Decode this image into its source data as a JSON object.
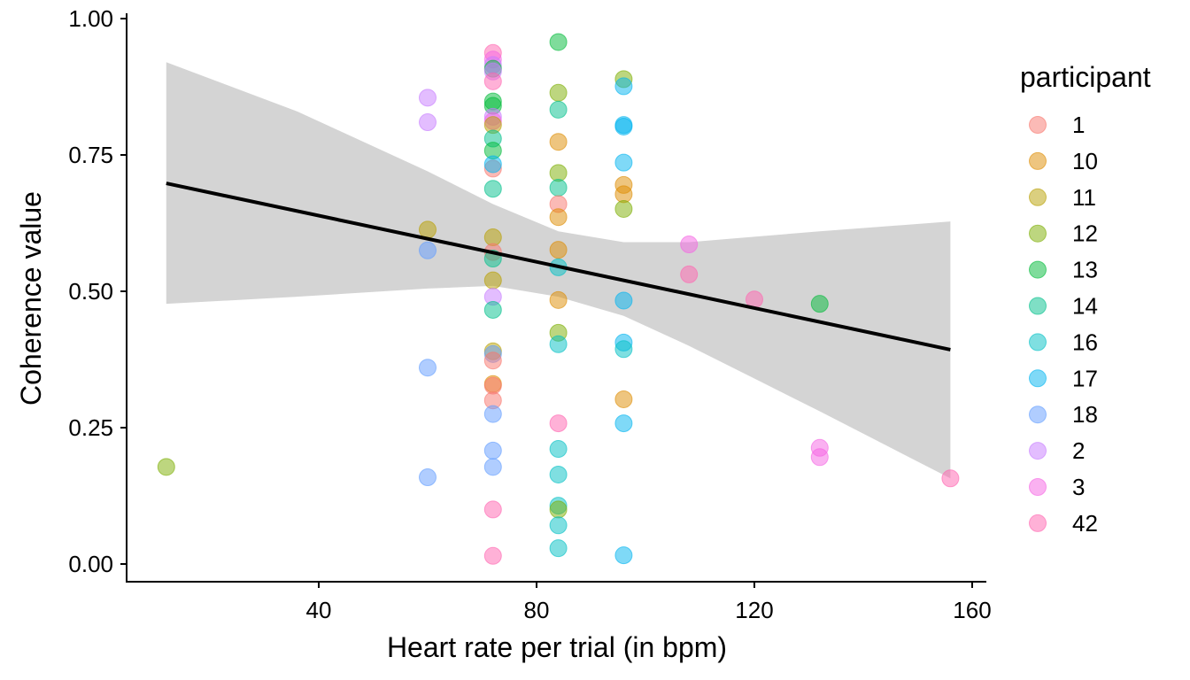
{
  "chart_data": {
    "type": "scatter",
    "title": "",
    "xlabel": "Heart rate per trial (in bpm)",
    "ylabel": "Coherence value",
    "xlim": [
      6,
      162
    ],
    "ylim": [
      -0.03,
      1.0
    ],
    "x_ticks": [
      40,
      80,
      120,
      160
    ],
    "x_tick_labels": [
      "40",
      "80",
      "120",
      "160"
    ],
    "y_ticks": [
      0,
      0.25,
      0.5,
      0.75,
      1.0
    ],
    "y_tick_labels": [
      "0.00",
      "0.25",
      "0.50",
      "0.75",
      "1.00"
    ],
    "grid": false,
    "legend": {
      "title": "participant",
      "position": "right",
      "entries": [
        {
          "label": "1",
          "color": "#F8766D"
        },
        {
          "label": "10",
          "color": "#DE8C00"
        },
        {
          "label": "11",
          "color": "#B79F00"
        },
        {
          "label": "12",
          "color": "#7CAE00"
        },
        {
          "label": "13",
          "color": "#00BA38"
        },
        {
          "label": "14",
          "color": "#00C08B"
        },
        {
          "label": "16",
          "color": "#00BFC4"
        },
        {
          "label": "17",
          "color": "#00B4F0"
        },
        {
          "label": "18",
          "color": "#619CFF"
        },
        {
          "label": "2",
          "color": "#C77CFF"
        },
        {
          "label": "3",
          "color": "#F564E3"
        },
        {
          "label": "42",
          "color": "#FF64B0"
        }
      ]
    },
    "points": [
      {
        "p": "12",
        "x": 12,
        "y": 0.178
      },
      {
        "p": "2",
        "x": 60,
        "y": 0.855
      },
      {
        "p": "2",
        "x": 60,
        "y": 0.81
      },
      {
        "p": "11",
        "x": 60,
        "y": 0.613
      },
      {
        "p": "18",
        "x": 60,
        "y": 0.575
      },
      {
        "p": "18",
        "x": 60,
        "y": 0.36
      },
      {
        "p": "18",
        "x": 60,
        "y": 0.159
      },
      {
        "p": "42",
        "x": 72,
        "y": 0.937
      },
      {
        "p": "3",
        "x": 72,
        "y": 0.925
      },
      {
        "p": "2",
        "x": 72,
        "y": 0.915
      },
      {
        "p": "13",
        "x": 72,
        "y": 0.908
      },
      {
        "p": "2",
        "x": 72,
        "y": 0.903
      },
      {
        "p": "42",
        "x": 72,
        "y": 0.885
      },
      {
        "p": "13",
        "x": 72,
        "y": 0.848
      },
      {
        "p": "13",
        "x": 72,
        "y": 0.84
      },
      {
        "p": "2",
        "x": 72,
        "y": 0.82
      },
      {
        "p": "3",
        "x": 72,
        "y": 0.812
      },
      {
        "p": "11",
        "x": 72,
        "y": 0.805
      },
      {
        "p": "14",
        "x": 72,
        "y": 0.78
      },
      {
        "p": "13",
        "x": 72,
        "y": 0.758
      },
      {
        "p": "1",
        "x": 72,
        "y": 0.725
      },
      {
        "p": "17",
        "x": 72,
        "y": 0.733
      },
      {
        "p": "14",
        "x": 72,
        "y": 0.688
      },
      {
        "p": "11",
        "x": 72,
        "y": 0.599
      },
      {
        "p": "1",
        "x": 72,
        "y": 0.572
      },
      {
        "p": "14",
        "x": 72,
        "y": 0.56
      },
      {
        "p": "11",
        "x": 72,
        "y": 0.52
      },
      {
        "p": "2",
        "x": 72,
        "y": 0.49
      },
      {
        "p": "14",
        "x": 72,
        "y": 0.466
      },
      {
        "p": "11",
        "x": 72,
        "y": 0.39
      },
      {
        "p": "18",
        "x": 72,
        "y": 0.385
      },
      {
        "p": "1",
        "x": 72,
        "y": 0.373
      },
      {
        "p": "10",
        "x": 72,
        "y": 0.33
      },
      {
        "p": "1",
        "x": 72,
        "y": 0.327
      },
      {
        "p": "1",
        "x": 72,
        "y": 0.3
      },
      {
        "p": "18",
        "x": 72,
        "y": 0.275
      },
      {
        "p": "18",
        "x": 72,
        "y": 0.208
      },
      {
        "p": "18",
        "x": 72,
        "y": 0.178
      },
      {
        "p": "42",
        "x": 72,
        "y": 0.1
      },
      {
        "p": "42",
        "x": 72,
        "y": 0.015
      },
      {
        "p": "13",
        "x": 84,
        "y": 0.957
      },
      {
        "p": "12",
        "x": 84,
        "y": 0.864
      },
      {
        "p": "14",
        "x": 84,
        "y": 0.833
      },
      {
        "p": "10",
        "x": 84,
        "y": 0.774
      },
      {
        "p": "12",
        "x": 84,
        "y": 0.717
      },
      {
        "p": "14",
        "x": 84,
        "y": 0.69
      },
      {
        "p": "1",
        "x": 84,
        "y": 0.66
      },
      {
        "p": "10",
        "x": 84,
        "y": 0.636
      },
      {
        "p": "10",
        "x": 84,
        "y": 0.576
      },
      {
        "p": "16",
        "x": 84,
        "y": 0.544
      },
      {
        "p": "10",
        "x": 84,
        "y": 0.484
      },
      {
        "p": "12",
        "x": 84,
        "y": 0.424
      },
      {
        "p": "16",
        "x": 84,
        "y": 0.403
      },
      {
        "p": "42",
        "x": 84,
        "y": 0.258
      },
      {
        "p": "16",
        "x": 84,
        "y": 0.211
      },
      {
        "p": "16",
        "x": 84,
        "y": 0.164
      },
      {
        "p": "16",
        "x": 84,
        "y": 0.107
      },
      {
        "p": "12",
        "x": 84,
        "y": 0.1
      },
      {
        "p": "16",
        "x": 84,
        "y": 0.071
      },
      {
        "p": "16",
        "x": 84,
        "y": 0.029
      },
      {
        "p": "12",
        "x": 96,
        "y": 0.889
      },
      {
        "p": "17",
        "x": 96,
        "y": 0.876
      },
      {
        "p": "17",
        "x": 96,
        "y": 0.805
      },
      {
        "p": "17",
        "x": 96,
        "y": 0.802
      },
      {
        "p": "17",
        "x": 96,
        "y": 0.736
      },
      {
        "p": "10",
        "x": 96,
        "y": 0.695
      },
      {
        "p": "10",
        "x": 96,
        "y": 0.678
      },
      {
        "p": "12",
        "x": 96,
        "y": 0.651
      },
      {
        "p": "17",
        "x": 96,
        "y": 0.483
      },
      {
        "p": "17",
        "x": 96,
        "y": 0.406
      },
      {
        "p": "16",
        "x": 96,
        "y": 0.394
      },
      {
        "p": "10",
        "x": 96,
        "y": 0.302
      },
      {
        "p": "17",
        "x": 96,
        "y": 0.258
      },
      {
        "p": "17",
        "x": 96,
        "y": 0.016
      },
      {
        "p": "3",
        "x": 108,
        "y": 0.586
      },
      {
        "p": "42",
        "x": 108,
        "y": 0.531
      },
      {
        "p": "42",
        "x": 120,
        "y": 0.485
      },
      {
        "p": "13",
        "x": 132,
        "y": 0.477
      },
      {
        "p": "3",
        "x": 132,
        "y": 0.213
      },
      {
        "p": "3",
        "x": 132,
        "y": 0.196
      },
      {
        "p": "42",
        "x": 156,
        "y": 0.157
      }
    ],
    "smooth": {
      "method": "lm",
      "line": [
        [
          12,
          0.698
        ],
        [
          156,
          0.393
        ]
      ],
      "ribbon_upper": [
        [
          12,
          0.92
        ],
        [
          36,
          0.83
        ],
        [
          60,
          0.72
        ],
        [
          72,
          0.66
        ],
        [
          84,
          0.61
        ],
        [
          96,
          0.59
        ],
        [
          108,
          0.59
        ],
        [
          120,
          0.6
        ],
        [
          132,
          0.61
        ],
        [
          156,
          0.628
        ]
      ],
      "ribbon_lower": [
        [
          12,
          0.477
        ],
        [
          36,
          0.49
        ],
        [
          60,
          0.505
        ],
        [
          72,
          0.51
        ],
        [
          84,
          0.49
        ],
        [
          96,
          0.455
        ],
        [
          108,
          0.4
        ],
        [
          120,
          0.34
        ],
        [
          132,
          0.28
        ],
        [
          156,
          0.157
        ]
      ]
    }
  }
}
